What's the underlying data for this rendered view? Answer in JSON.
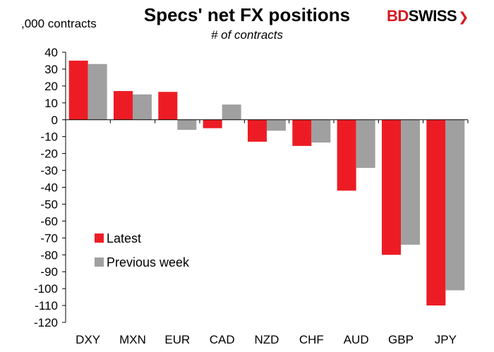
{
  "brand": {
    "logo_bd": "BD",
    "logo_swiss": "SWISS",
    "logo_chevron": "❯",
    "colors": {
      "red": "#d71920"
    }
  },
  "chart_data": {
    "type": "bar",
    "title": "Specs' net FX positions",
    "subtitle": "# of contracts",
    "ylabel": ",000 contracts",
    "xlabel": "",
    "categories": [
      "DXY",
      "MXN",
      "EUR",
      "CAD",
      "NZD",
      "CHF",
      "AUD",
      "GBP",
      "JPY"
    ],
    "series": [
      {
        "name": "Latest",
        "color": "#ed1c24",
        "values": [
          35,
          17,
          16.5,
          -5,
          -13,
          -15.5,
          -42,
          -80,
          -110
        ]
      },
      {
        "name": "Previous week",
        "color": "#a0a0a0",
        "values": [
          33,
          15,
          -6,
          9,
          -6.5,
          -13.5,
          -28.5,
          -74,
          -101
        ]
      }
    ],
    "ylim": [
      -120,
      40
    ],
    "yticks": [
      40,
      30,
      20,
      10,
      0,
      -10,
      -20,
      -30,
      -40,
      -50,
      -60,
      -70,
      -80,
      -90,
      -100,
      -110,
      -120
    ],
    "grid": false,
    "legend_position": "lower-left inside"
  }
}
